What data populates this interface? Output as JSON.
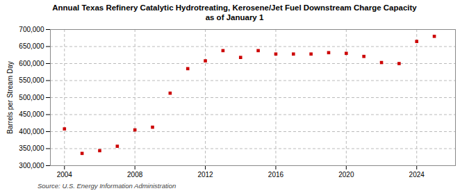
{
  "chart_data": {
    "type": "scatter",
    "title": "Annual Texas Refinery Catalytic Hydrotreating, Kerosene/Jet Fuel Downstream Charge Capacity\nas of January 1",
    "ylabel": "Barrels per Stream Day",
    "annotations": [
      "Source: U.S. Energy Information Administration"
    ],
    "x": [
      2004,
      2005,
      2006,
      2007,
      2008,
      2009,
      2010,
      2011,
      2012,
      2013,
      2014,
      2015,
      2016,
      2017,
      2018,
      2019,
      2020,
      2021,
      2022,
      2023,
      2024,
      2025
    ],
    "values": [
      408000,
      336000,
      344000,
      357000,
      405000,
      413000,
      513000,
      585000,
      608000,
      638000,
      618000,
      638000,
      628000,
      628000,
      628000,
      632000,
      630000,
      621000,
      603000,
      600000,
      665000,
      680000
    ],
    "color": "#cc0000",
    "marker": "square",
    "xlim": [
      2003.2,
      2026.2
    ],
    "xticks": [
      2004,
      2008,
      2012,
      2016,
      2020,
      2024
    ],
    "ylim": [
      300000,
      700000
    ],
    "yticks": [
      {
        "value": 300000,
        "label": "300,000"
      },
      {
        "value": 350000,
        "label": "350,000"
      },
      {
        "value": 400000,
        "label": "400,000"
      },
      {
        "value": 450000,
        "label": "450,000"
      },
      {
        "value": 500000,
        "label": "500,000"
      },
      {
        "value": 550000,
        "label": "550,000"
      },
      {
        "value": 600000,
        "label": "600,000"
      },
      {
        "value": 650000,
        "label": "650,000"
      },
      {
        "value": 700000,
        "label": "700,000"
      }
    ],
    "grid": true
  }
}
